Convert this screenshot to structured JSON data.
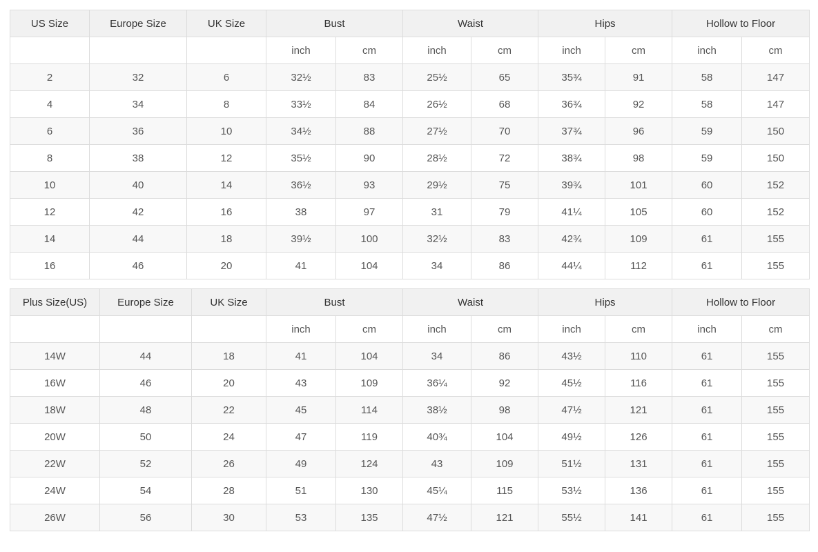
{
  "size_chart": {
    "colors": {
      "header_bg": "#f1f1f1",
      "stripe_bg": "#f8f8f8",
      "row_bg": "#ffffff",
      "border": "#dcdcdc",
      "header_text": "#333333",
      "cell_text": "#555555"
    },
    "tables": [
      {
        "name": "standard-sizes",
        "group_headers": [
          {
            "label": "US Size",
            "span": 1
          },
          {
            "label": "Europe Size",
            "span": 1
          },
          {
            "label": "UK Size",
            "span": 1
          },
          {
            "label": "Bust",
            "span": 2
          },
          {
            "label": "Waist",
            "span": 2
          },
          {
            "label": "Hips",
            "span": 2
          },
          {
            "label": "Hollow to Floor",
            "span": 2
          }
        ],
        "unit_row": [
          "",
          "",
          "",
          "inch",
          "cm",
          "inch",
          "cm",
          "inch",
          "cm",
          "inch",
          "cm"
        ],
        "rows": [
          [
            "2",
            "32",
            "6",
            "32½",
            "83",
            "25½",
            "65",
            "35¾",
            "91",
            "58",
            "147"
          ],
          [
            "4",
            "34",
            "8",
            "33½",
            "84",
            "26½",
            "68",
            "36¾",
            "92",
            "58",
            "147"
          ],
          [
            "6",
            "36",
            "10",
            "34½",
            "88",
            "27½",
            "70",
            "37¾",
            "96",
            "59",
            "150"
          ],
          [
            "8",
            "38",
            "12",
            "35½",
            "90",
            "28½",
            "72",
            "38¾",
            "98",
            "59",
            "150"
          ],
          [
            "10",
            "40",
            "14",
            "36½",
            "93",
            "29½",
            "75",
            "39¾",
            "101",
            "60",
            "152"
          ],
          [
            "12",
            "42",
            "16",
            "38",
            "97",
            "31",
            "79",
            "41¼",
            "105",
            "60",
            "152"
          ],
          [
            "14",
            "44",
            "18",
            "39½",
            "100",
            "32½",
            "83",
            "42¾",
            "109",
            "61",
            "155"
          ],
          [
            "16",
            "46",
            "20",
            "41",
            "104",
            "34",
            "86",
            "44¼",
            "112",
            "61",
            "155"
          ]
        ]
      },
      {
        "name": "plus-sizes",
        "group_headers": [
          {
            "label": "Plus Size(US)",
            "span": 1
          },
          {
            "label": "Europe Size",
            "span": 1
          },
          {
            "label": "UK Size",
            "span": 1
          },
          {
            "label": "Bust",
            "span": 2
          },
          {
            "label": "Waist",
            "span": 2
          },
          {
            "label": "Hips",
            "span": 2
          },
          {
            "label": "Hollow to Floor",
            "span": 2
          }
        ],
        "unit_row": [
          "",
          "",
          "",
          "inch",
          "cm",
          "inch",
          "cm",
          "inch",
          "cm",
          "inch",
          "cm"
        ],
        "rows": [
          [
            "14W",
            "44",
            "18",
            "41",
            "104",
            "34",
            "86",
            "43½",
            "110",
            "61",
            "155"
          ],
          [
            "16W",
            "46",
            "20",
            "43",
            "109",
            "36¼",
            "92",
            "45½",
            "116",
            "61",
            "155"
          ],
          [
            "18W",
            "48",
            "22",
            "45",
            "114",
            "38½",
            "98",
            "47½",
            "121",
            "61",
            "155"
          ],
          [
            "20W",
            "50",
            "24",
            "47",
            "119",
            "40¾",
            "104",
            "49½",
            "126",
            "61",
            "155"
          ],
          [
            "22W",
            "52",
            "26",
            "49",
            "124",
            "43",
            "109",
            "51½",
            "131",
            "61",
            "155"
          ],
          [
            "24W",
            "54",
            "28",
            "51",
            "130",
            "45¼",
            "115",
            "53½",
            "136",
            "61",
            "155"
          ],
          [
            "26W",
            "56",
            "30",
            "53",
            "135",
            "47½",
            "121",
            "55½",
            "141",
            "61",
            "155"
          ]
        ]
      }
    ]
  }
}
